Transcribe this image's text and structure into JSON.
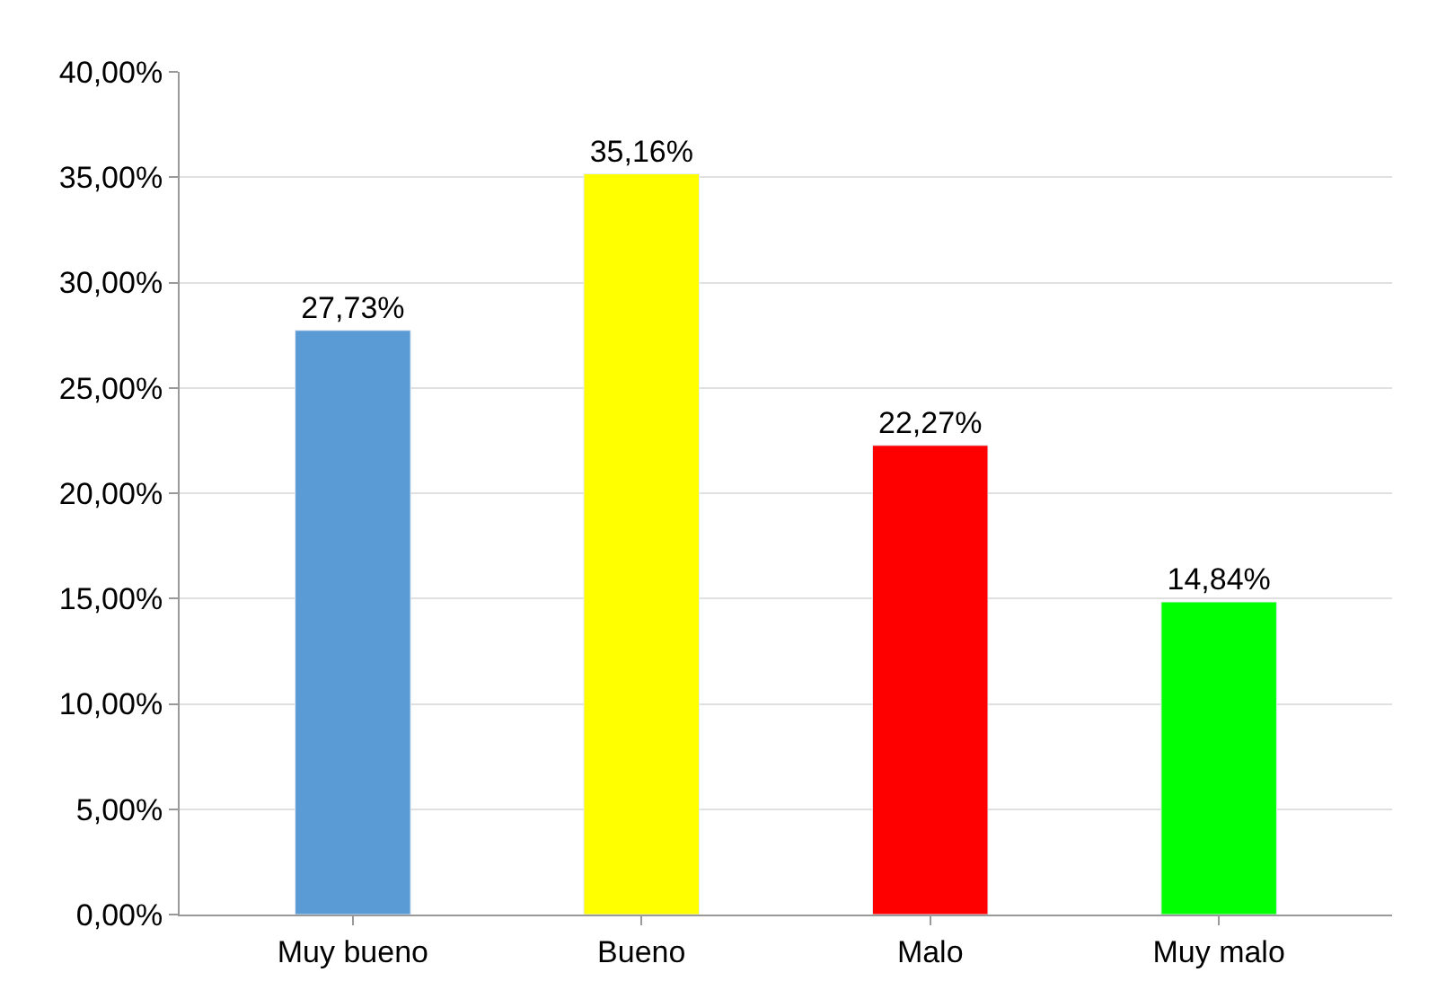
{
  "chart_data": {
    "type": "bar",
    "categories": [
      "Muy bueno",
      "Bueno",
      "Malo",
      "Muy malo"
    ],
    "values": [
      27.73,
      35.16,
      22.27,
      14.84
    ],
    "colors": [
      "#5b9bd5",
      "#ffff00",
      "#ff0000",
      "#00ff00"
    ],
    "value_labels": [
      "27,73%",
      "35,16%",
      "22,27%",
      "14,84%"
    ],
    "ylim": [
      0,
      40
    ],
    "yticks": [
      {
        "value": 0,
        "label": "0,00%"
      },
      {
        "value": 5,
        "label": "5,00%"
      },
      {
        "value": 10,
        "label": "10,00%"
      },
      {
        "value": 15,
        "label": "15,00%"
      },
      {
        "value": 20,
        "label": "20,00%"
      },
      {
        "value": 25,
        "label": "25,00%"
      },
      {
        "value": 30,
        "label": "30,00%"
      },
      {
        "value": 35,
        "label": "35,00%"
      },
      {
        "value": 40,
        "label": "40,00%"
      }
    ],
    "grid": "y",
    "legend": false
  }
}
